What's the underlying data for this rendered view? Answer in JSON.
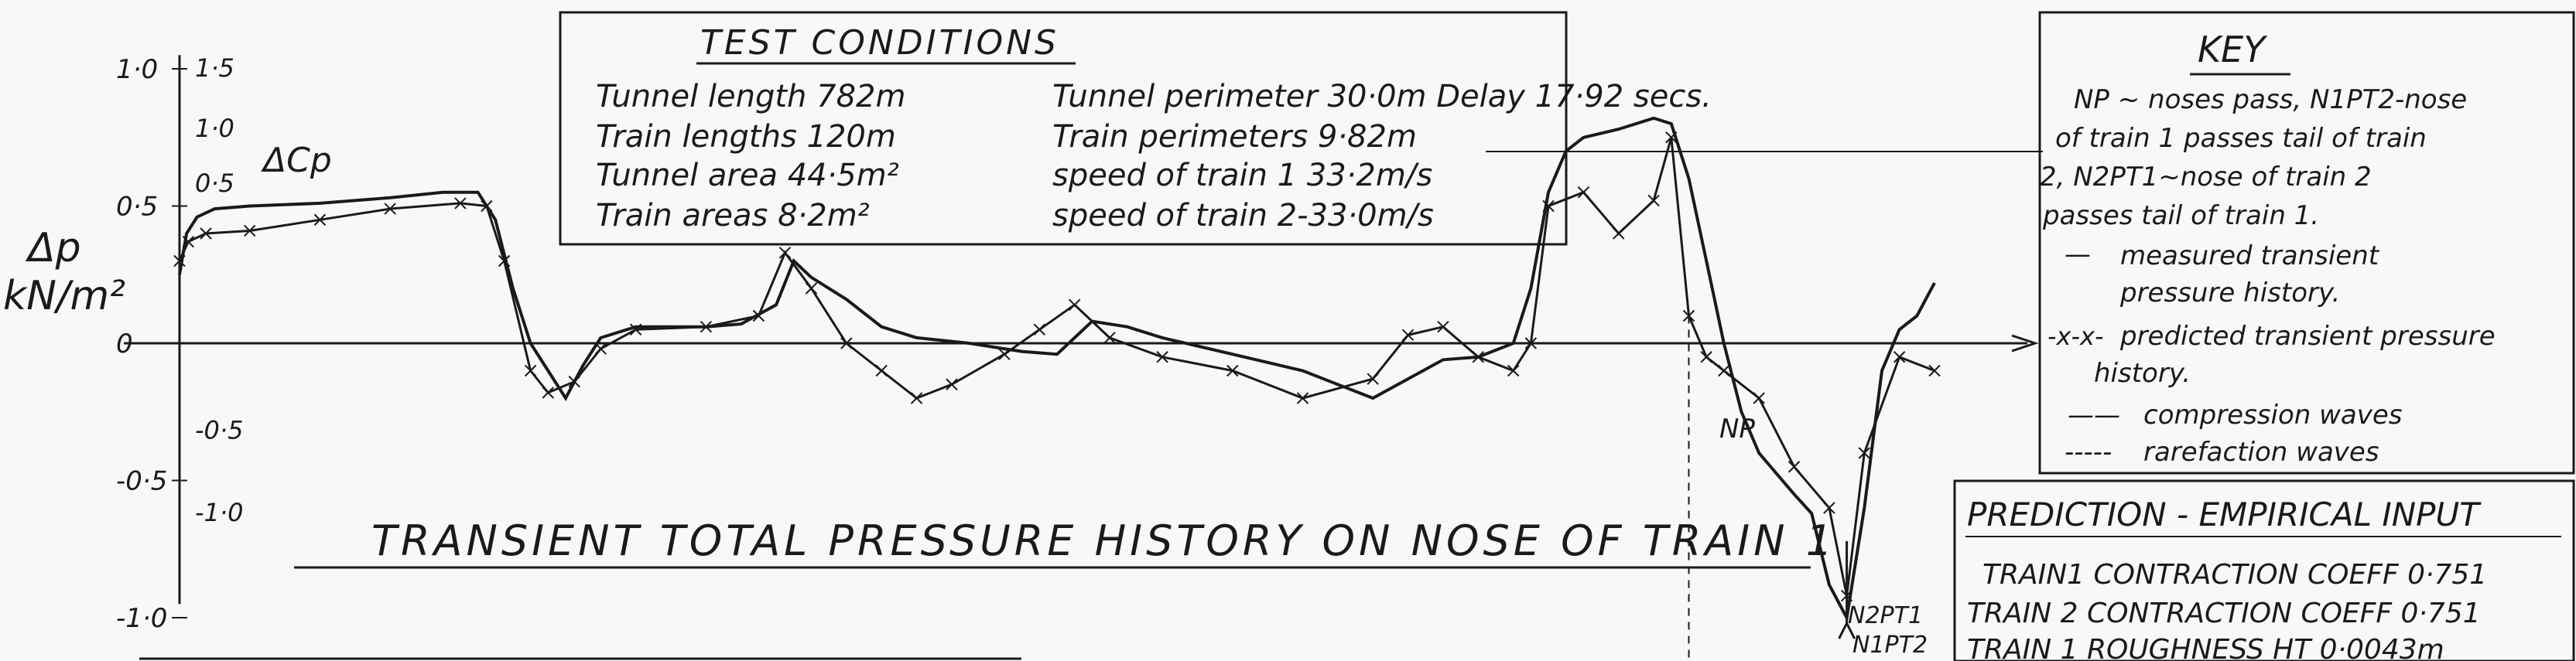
{
  "test_conditions": {
    "title": "TEST CONDITIONS",
    "rows": [
      [
        "Tunnel length  782m",
        "Tunnel perimeter  30·0m Delay  17·92 secs."
      ],
      [
        "Train lengths  120m",
        "Train perimeters  9·82m"
      ],
      [
        "Tunnel area   44·5m²",
        "speed of train 1  33·2m/s"
      ],
      [
        "Train areas  8·2m²",
        "speed of train 2-33·0m/s"
      ]
    ]
  },
  "key": {
    "title": "KEY",
    "lines": [
      "NP ~ noses pass, N1PT2-nose",
      "of train 1 passes tail of train",
      "2, N2PT1~nose of train 2",
      "passes tail of train 1."
    ],
    "legend": [
      {
        "symbol": "—",
        "text": "measured transient"
      },
      {
        "symbol": "",
        "text": "pressure history."
      },
      {
        "symbol": "-x-x-",
        "text": "predicted transient pressure"
      },
      {
        "symbol": "",
        "text": "history."
      },
      {
        "symbol": "——",
        "text": "compression waves"
      },
      {
        "symbol": "-----",
        "text": "rarefaction waves"
      }
    ]
  },
  "prediction": {
    "title": "PREDICTION - EMPIRICAL INPUT",
    "lines": [
      "TRAIN1 CONTRACTION COEFF 0·751",
      "TRAIN 2 CONTRACTION COEFF 0·751",
      "TRAIN 1 ROUGHNESS  HT  0·0043m"
    ]
  },
  "annotations": {
    "np": "NP",
    "n2pt1": "N2PT1",
    "n1pt2": "N1PT2"
  },
  "chart_data": {
    "type": "line",
    "title": "TRANSIENT TOTAL PRESSURE HISTORY ON NOSE OF TRAIN 1",
    "ylabel_dp": "Δp",
    "ylabel_units": "kN/m²",
    "ylabel_cp": "ΔCp",
    "yticks_dp": [
      "1·0",
      "0·5",
      "0",
      "-0·5",
      "-1·0"
    ],
    "yticks_cp": [
      "1·5",
      "1·0",
      "0·5",
      "-0·5",
      "-1·0"
    ],
    "ylim": [
      -1.0,
      1.0
    ],
    "xlim": [
      0,
      1
    ],
    "series": [
      {
        "name": "measured transient pressure history.",
        "marker": "none",
        "points": [
          [
            0.0,
            0.25
          ],
          [
            0.004,
            0.4
          ],
          [
            0.01,
            0.46
          ],
          [
            0.02,
            0.49
          ],
          [
            0.04,
            0.5
          ],
          [
            0.08,
            0.51
          ],
          [
            0.12,
            0.53
          ],
          [
            0.15,
            0.55
          ],
          [
            0.17,
            0.55
          ],
          [
            0.18,
            0.45
          ],
          [
            0.19,
            0.2
          ],
          [
            0.2,
            0.0
          ],
          [
            0.21,
            -0.1
          ],
          [
            0.22,
            -0.2
          ],
          [
            0.23,
            -0.08
          ],
          [
            0.24,
            0.02
          ],
          [
            0.26,
            0.06
          ],
          [
            0.3,
            0.06
          ],
          [
            0.32,
            0.07
          ],
          [
            0.34,
            0.14
          ],
          [
            0.35,
            0.3
          ],
          [
            0.36,
            0.24
          ],
          [
            0.38,
            0.16
          ],
          [
            0.4,
            0.06
          ],
          [
            0.42,
            0.02
          ],
          [
            0.45,
            0.0
          ],
          [
            0.48,
            -0.03
          ],
          [
            0.5,
            -0.04
          ],
          [
            0.52,
            0.08
          ],
          [
            0.54,
            0.06
          ],
          [
            0.56,
            0.02
          ],
          [
            0.6,
            -0.04
          ],
          [
            0.64,
            -0.1
          ],
          [
            0.66,
            -0.15
          ],
          [
            0.68,
            -0.2
          ],
          [
            0.7,
            -0.13
          ],
          [
            0.72,
            -0.06
          ],
          [
            0.74,
            -0.05
          ],
          [
            0.76,
            0.0
          ],
          [
            0.77,
            0.2
          ],
          [
            0.78,
            0.55
          ],
          [
            0.79,
            0.7
          ],
          [
            0.8,
            0.75
          ],
          [
            0.82,
            0.78
          ],
          [
            0.84,
            0.82
          ],
          [
            0.85,
            0.8
          ],
          [
            0.86,
            0.6
          ],
          [
            0.87,
            0.3
          ],
          [
            0.88,
            0.0
          ],
          [
            0.89,
            -0.25
          ],
          [
            0.9,
            -0.4
          ],
          [
            0.92,
            -0.55
          ],
          [
            0.93,
            -0.62
          ],
          [
            0.94,
            -0.88
          ],
          [
            0.95,
            -1.0
          ],
          [
            0.96,
            -0.6
          ],
          [
            0.97,
            -0.1
          ],
          [
            0.98,
            0.05
          ],
          [
            0.99,
            0.1
          ],
          [
            1.0,
            0.22
          ]
        ]
      },
      {
        "name": "predicted transient pressure history.",
        "marker": "x",
        "points": [
          [
            0.0,
            0.3
          ],
          [
            0.005,
            0.37
          ],
          [
            0.015,
            0.4
          ],
          [
            0.04,
            0.41
          ],
          [
            0.08,
            0.45
          ],
          [
            0.12,
            0.49
          ],
          [
            0.16,
            0.51
          ],
          [
            0.175,
            0.5
          ],
          [
            0.185,
            0.3
          ],
          [
            0.2,
            -0.1
          ],
          [
            0.21,
            -0.18
          ],
          [
            0.225,
            -0.14
          ],
          [
            0.24,
            -0.02
          ],
          [
            0.26,
            0.05
          ],
          [
            0.3,
            0.06
          ],
          [
            0.33,
            0.1
          ],
          [
            0.345,
            0.33
          ],
          [
            0.36,
            0.2
          ],
          [
            0.38,
            0.0
          ],
          [
            0.4,
            -0.1
          ],
          [
            0.42,
            -0.2
          ],
          [
            0.44,
            -0.15
          ],
          [
            0.47,
            -0.04
          ],
          [
            0.49,
            0.05
          ],
          [
            0.51,
            0.14
          ],
          [
            0.53,
            0.02
          ],
          [
            0.56,
            -0.05
          ],
          [
            0.6,
            -0.1
          ],
          [
            0.64,
            -0.2
          ],
          [
            0.68,
            -0.13
          ],
          [
            0.7,
            0.03
          ],
          [
            0.72,
            0.06
          ],
          [
            0.74,
            -0.05
          ],
          [
            0.76,
            -0.1
          ],
          [
            0.77,
            0.0
          ],
          [
            0.78,
            0.5
          ],
          [
            0.8,
            0.55
          ],
          [
            0.82,
            0.4
          ],
          [
            0.84,
            0.52
          ],
          [
            0.85,
            0.75
          ],
          [
            0.86,
            0.1
          ],
          [
            0.87,
            -0.05
          ],
          [
            0.88,
            -0.1
          ],
          [
            0.9,
            -0.2
          ],
          [
            0.92,
            -0.45
          ],
          [
            0.94,
            -0.6
          ],
          [
            0.95,
            -0.92
          ],
          [
            0.96,
            -0.4
          ],
          [
            0.98,
            -0.05
          ],
          [
            1.0,
            -0.1
          ]
        ]
      }
    ]
  }
}
